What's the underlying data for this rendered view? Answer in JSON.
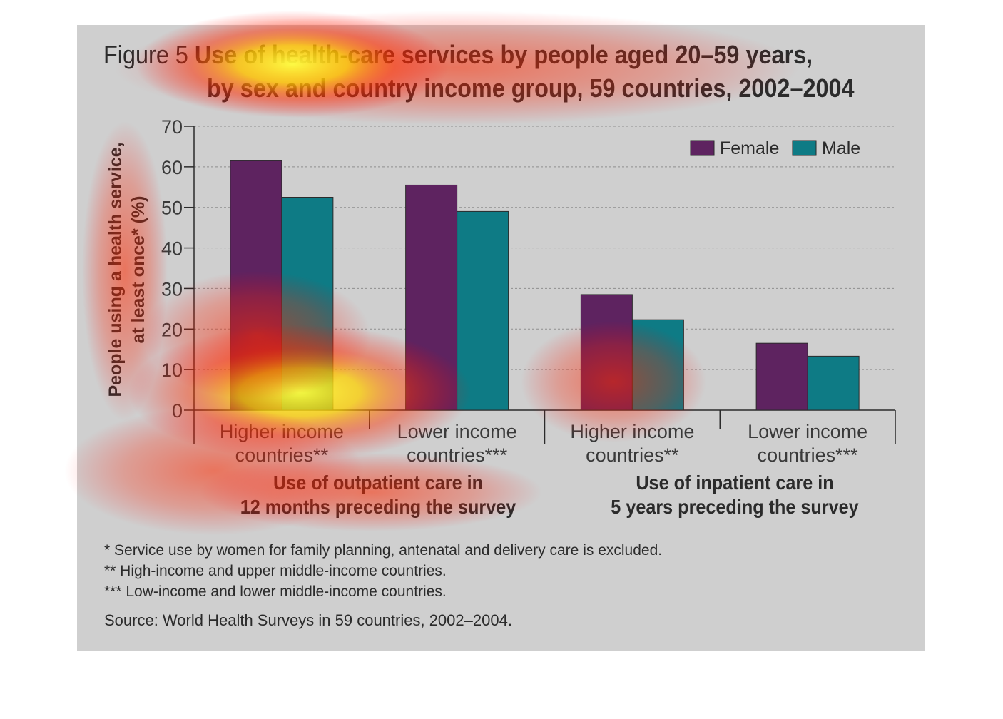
{
  "title": {
    "figure_label": "Figure 5",
    "line1": "Use of health-care services by people aged 20–59 years,",
    "line2": "by sex and country income group, 59 countries, 2002–2004"
  },
  "colors": {
    "female": "#5e2360",
    "male": "#0e7b85",
    "panel_bg": "#cfcfcf"
  },
  "chart_data": {
    "type": "bar",
    "categories": [
      "Higher income countries**",
      "Lower income countries***",
      "Higher income countries**",
      "Lower income countries***"
    ],
    "category_lines": [
      [
        "Higher income",
        "countries**"
      ],
      [
        "Lower income",
        "countries***"
      ],
      [
        "Higher income",
        "countries**"
      ],
      [
        "Lower income",
        "countries***"
      ]
    ],
    "series": [
      {
        "name": "Female",
        "values": [
          61.5,
          55.5,
          28.5,
          16.5
        ]
      },
      {
        "name": "Male",
        "values": [
          52.5,
          49,
          22.3,
          13.3
        ]
      }
    ],
    "groups": [
      {
        "lines": [
          "Use of outpatient care in",
          "12 months preceding the survey"
        ]
      },
      {
        "lines": [
          "Use of inpatient care in",
          "5 years preceding the survey"
        ]
      }
    ],
    "ylabel_lines": [
      "People using a health service,",
      "at least once* (%)"
    ],
    "ylim": [
      0,
      70
    ],
    "yticks": [
      0,
      10,
      20,
      30,
      40,
      50,
      60,
      70
    ],
    "grid": true,
    "legend_position": "top-right"
  },
  "footnotes": [
    "* Service use by women for family planning, antenatal and delivery care is excluded.",
    "** High-income and upper middle-income countries.",
    "*** Low-income and lower middle-income countries."
  ],
  "source": "Source: World Health Surveys in 59 countries, 2002–2004."
}
